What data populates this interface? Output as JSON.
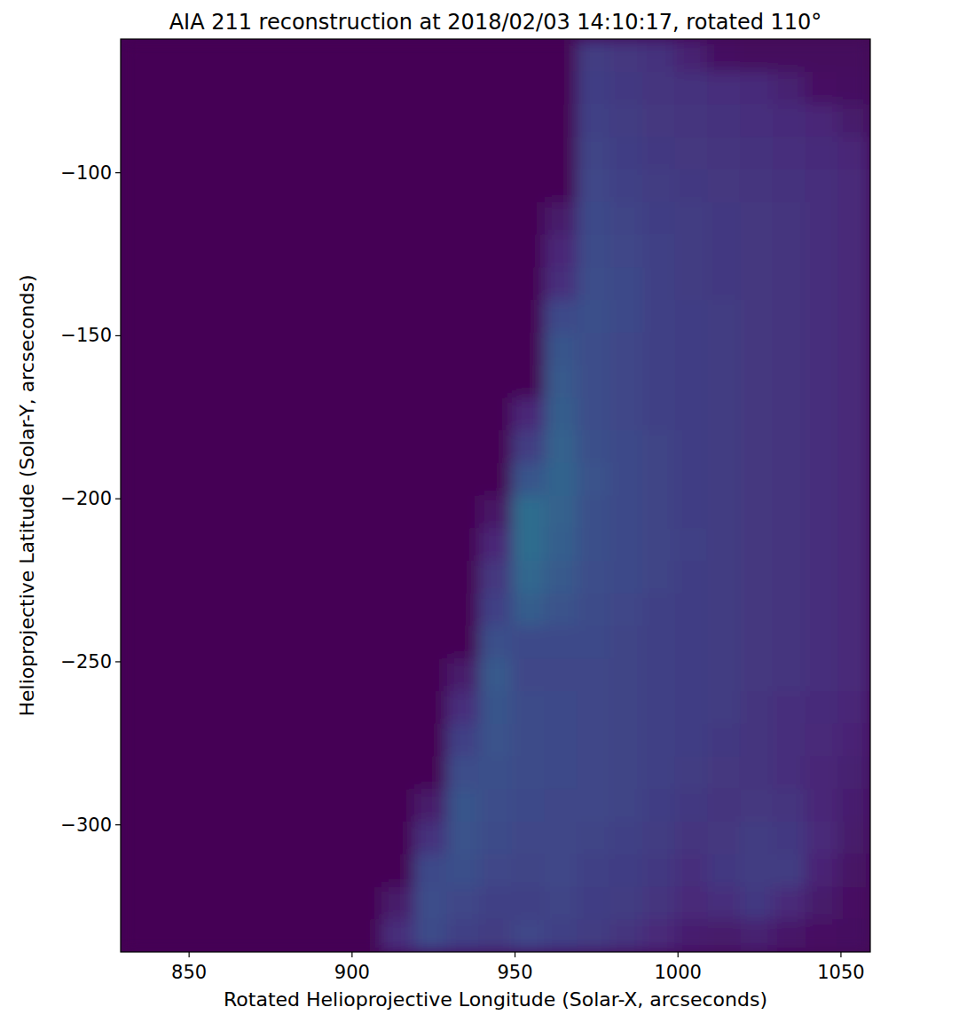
{
  "chart_data": {
    "type": "heatmap",
    "title": "AIA 211 reconstruction at 2018/02/03 14:10:17, rotated 110°",
    "x_label": "Rotated Helioprojective Longitude (Solar-X, arcseconds)",
    "y_label": "Helioprojective Latitude (Solar-Y, arcseconds)",
    "xlim": [
      829,
      1059
    ],
    "ylim": [
      -339,
      -59
    ],
    "xticks": [
      850,
      900,
      950,
      1000,
      1050
    ],
    "yticks": [
      {
        "value": -100,
        "label": "−100"
      },
      {
        "value": -150,
        "label": "−150"
      },
      {
        "value": -200,
        "label": "−200"
      },
      {
        "value": -250,
        "label": "−250"
      },
      {
        "value": -300,
        "label": "−300"
      }
    ],
    "grid": false,
    "color_range": [
      0,
      1
    ],
    "x": [
      834,
      844,
      854,
      864,
      874,
      884,
      894,
      904,
      914,
      924,
      934,
      944,
      954,
      964,
      974,
      984,
      994,
      1004,
      1014,
      1024,
      1034,
      1044,
      1054
    ],
    "y": [
      -64,
      -74,
      -84,
      -94,
      -104,
      -114,
      -124,
      -134,
      -144,
      -154,
      -164,
      -174,
      -184,
      -194,
      -204,
      -214,
      -224,
      -234,
      -244,
      -254,
      -264,
      -274,
      -284,
      -294,
      -304,
      -314,
      -324,
      -334
    ],
    "z": [
      [
        0,
        0,
        0,
        0,
        0,
        0,
        0,
        0,
        0,
        0,
        0,
        0,
        0,
        0,
        0.2,
        0.18,
        0.16,
        0.1,
        0.04,
        0.03,
        0.03,
        0.03,
        0.03
      ],
      [
        0,
        0,
        0,
        0,
        0,
        0,
        0,
        0,
        0,
        0,
        0,
        0,
        0,
        0,
        0.21,
        0.19,
        0.17,
        0.16,
        0.15,
        0.14,
        0.1,
        0.05,
        0.04
      ],
      [
        0,
        0,
        0,
        0,
        0,
        0,
        0,
        0,
        0,
        0,
        0,
        0,
        0,
        0,
        0.22,
        0.2,
        0.18,
        0.17,
        0.16,
        0.15,
        0.14,
        0.12,
        0.08
      ],
      [
        0,
        0,
        0,
        0,
        0,
        0,
        0,
        0,
        0,
        0,
        0,
        0,
        0,
        0,
        0.23,
        0.21,
        0.19,
        0.18,
        0.17,
        0.16,
        0.15,
        0.14,
        0.12
      ],
      [
        0,
        0,
        0,
        0,
        0,
        0,
        0,
        0,
        0,
        0,
        0,
        0,
        0,
        0,
        0.24,
        0.22,
        0.2,
        0.19,
        0.18,
        0.17,
        0.16,
        0.15,
        0.13
      ],
      [
        0,
        0,
        0,
        0,
        0,
        0,
        0,
        0,
        0,
        0,
        0,
        0,
        0,
        0.08,
        0.25,
        0.23,
        0.21,
        0.2,
        0.19,
        0.18,
        0.17,
        0.15,
        0.13
      ],
      [
        0,
        0,
        0,
        0,
        0,
        0,
        0,
        0,
        0,
        0,
        0,
        0,
        0,
        0.12,
        0.26,
        0.24,
        0.22,
        0.2,
        0.19,
        0.18,
        0.17,
        0.15,
        0.13
      ],
      [
        0,
        0,
        0,
        0,
        0,
        0,
        0,
        0,
        0,
        0,
        0,
        0,
        0,
        0.15,
        0.27,
        0.25,
        0.22,
        0.2,
        0.19,
        0.18,
        0.17,
        0.15,
        0.13
      ],
      [
        0,
        0,
        0,
        0,
        0,
        0,
        0,
        0,
        0,
        0,
        0,
        0,
        0,
        0.25,
        0.28,
        0.25,
        0.22,
        0.21,
        0.2,
        0.18,
        0.17,
        0.15,
        0.13
      ],
      [
        0,
        0,
        0,
        0,
        0,
        0,
        0,
        0,
        0,
        0,
        0,
        0,
        0,
        0.3,
        0.27,
        0.24,
        0.22,
        0.21,
        0.2,
        0.18,
        0.17,
        0.15,
        0.13
      ],
      [
        0,
        0,
        0,
        0,
        0,
        0,
        0,
        0,
        0,
        0,
        0,
        0,
        0,
        0.32,
        0.27,
        0.24,
        0.22,
        0.21,
        0.2,
        0.18,
        0.17,
        0.15,
        0.13
      ],
      [
        0,
        0,
        0,
        0,
        0,
        0,
        0,
        0,
        0,
        0,
        0,
        0,
        0.12,
        0.33,
        0.27,
        0.24,
        0.22,
        0.21,
        0.2,
        0.18,
        0.17,
        0.15,
        0.13
      ],
      [
        0,
        0,
        0,
        0,
        0,
        0,
        0,
        0,
        0,
        0,
        0,
        0,
        0.2,
        0.35,
        0.28,
        0.25,
        0.23,
        0.21,
        0.2,
        0.18,
        0.17,
        0.15,
        0.13
      ],
      [
        0,
        0,
        0,
        0,
        0,
        0,
        0,
        0,
        0,
        0,
        0,
        0,
        0.3,
        0.36,
        0.29,
        0.25,
        0.23,
        0.21,
        0.2,
        0.18,
        0.17,
        0.15,
        0.13
      ],
      [
        0,
        0,
        0,
        0,
        0,
        0,
        0,
        0,
        0,
        0,
        0,
        0.06,
        0.4,
        0.35,
        0.28,
        0.25,
        0.23,
        0.21,
        0.2,
        0.18,
        0.17,
        0.15,
        0.13
      ],
      [
        0,
        0,
        0,
        0,
        0,
        0,
        0,
        0,
        0,
        0,
        0,
        0.12,
        0.4,
        0.34,
        0.28,
        0.25,
        0.23,
        0.22,
        0.2,
        0.18,
        0.17,
        0.15,
        0.13
      ],
      [
        0,
        0,
        0,
        0,
        0,
        0,
        0,
        0,
        0,
        0,
        0,
        0.18,
        0.37,
        0.32,
        0.27,
        0.25,
        0.23,
        0.21,
        0.2,
        0.18,
        0.17,
        0.15,
        0.13
      ],
      [
        0,
        0,
        0,
        0,
        0,
        0,
        0,
        0,
        0,
        0,
        0,
        0.22,
        0.33,
        0.29,
        0.26,
        0.24,
        0.22,
        0.21,
        0.2,
        0.18,
        0.17,
        0.15,
        0.13
      ],
      [
        0,
        0,
        0,
        0,
        0,
        0,
        0,
        0,
        0,
        0,
        0,
        0.28,
        0.25,
        0.25,
        0.25,
        0.23,
        0.22,
        0.21,
        0.2,
        0.18,
        0.17,
        0.15,
        0.13
      ],
      [
        0,
        0,
        0,
        0,
        0,
        0,
        0,
        0,
        0,
        0,
        0.08,
        0.32,
        0.24,
        0.24,
        0.24,
        0.23,
        0.22,
        0.21,
        0.2,
        0.18,
        0.17,
        0.15,
        0.13
      ],
      [
        0,
        0,
        0,
        0,
        0,
        0,
        0,
        0,
        0,
        0,
        0.15,
        0.3,
        0.26,
        0.25,
        0.24,
        0.23,
        0.22,
        0.21,
        0.2,
        0.17,
        0.15,
        0.14,
        0.12
      ],
      [
        0,
        0,
        0,
        0,
        0,
        0,
        0,
        0,
        0,
        0,
        0.22,
        0.29,
        0.26,
        0.25,
        0.24,
        0.23,
        0.22,
        0.21,
        0.19,
        0.17,
        0.15,
        0.13,
        0.11
      ],
      [
        0,
        0,
        0,
        0,
        0,
        0,
        0,
        0,
        0,
        0,
        0.27,
        0.28,
        0.26,
        0.25,
        0.24,
        0.23,
        0.22,
        0.2,
        0.18,
        0.17,
        0.15,
        0.12,
        0.1
      ],
      [
        0,
        0,
        0,
        0,
        0,
        0,
        0,
        0,
        0,
        0.08,
        0.3,
        0.27,
        0.25,
        0.24,
        0.24,
        0.23,
        0.21,
        0.19,
        0.17,
        0.18,
        0.17,
        0.12,
        0.09
      ],
      [
        0,
        0,
        0,
        0,
        0,
        0,
        0,
        0,
        0,
        0.16,
        0.29,
        0.26,
        0.24,
        0.24,
        0.23,
        0.22,
        0.2,
        0.17,
        0.18,
        0.2,
        0.19,
        0.13,
        0.08
      ],
      [
        0,
        0,
        0,
        0,
        0,
        0,
        0,
        0,
        0,
        0.25,
        0.28,
        0.24,
        0.23,
        0.24,
        0.22,
        0.21,
        0.19,
        0.15,
        0.19,
        0.2,
        0.2,
        0.11,
        0.06
      ],
      [
        0,
        0,
        0,
        0,
        0,
        0,
        0,
        0,
        0.08,
        0.27,
        0.24,
        0.22,
        0.22,
        0.23,
        0.21,
        0.2,
        0.17,
        0.13,
        0.15,
        0.19,
        0.13,
        0.08,
        0.05
      ],
      [
        0,
        0,
        0,
        0,
        0,
        0,
        0,
        0,
        0.15,
        0.26,
        0.22,
        0.2,
        0.24,
        0.22,
        0.2,
        0.17,
        0.13,
        0.09,
        0.08,
        0.1,
        0.07,
        0.05,
        0.04
      ]
    ]
  }
}
